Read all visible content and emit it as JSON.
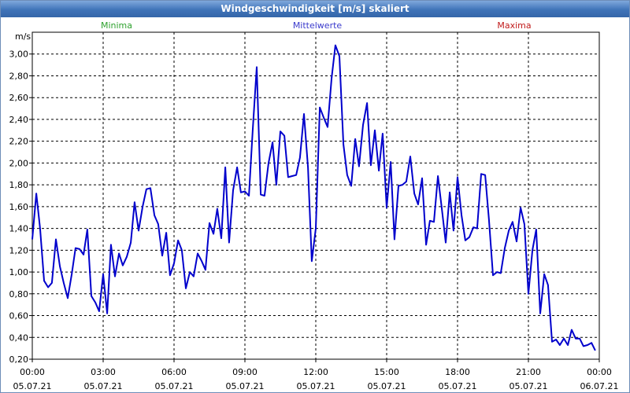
{
  "window": {
    "title": "Windgeschwindigkeit [m/s] skaliert"
  },
  "legend": {
    "minima": {
      "label": "Minima",
      "color": "#2ea12e"
    },
    "mittelwerte": {
      "label": "Mittelwerte",
      "color": "#3a3acc"
    },
    "maxima": {
      "label": "Maxima",
      "color": "#c01a1a"
    }
  },
  "chart_data": {
    "type": "line",
    "ylabel": "m/s",
    "ylim": [
      0.2,
      3.2
    ],
    "yticks": [
      "0,20",
      "0,40",
      "0,60",
      "0,80",
      "1,00",
      "1,20",
      "1,40",
      "1,60",
      "1,80",
      "2,00",
      "2,20",
      "2,40",
      "2,60",
      "2,80",
      "3,00"
    ],
    "xlim": [
      0,
      24
    ],
    "xticks": [
      {
        "time": "00:00",
        "date": "05.07.21"
      },
      {
        "time": "03:00",
        "date": "05.07.21"
      },
      {
        "time": "06:00",
        "date": "05.07.21"
      },
      {
        "time": "09:00",
        "date": "05.07.21"
      },
      {
        "time": "12:00",
        "date": "05.07.21"
      },
      {
        "time": "15:00",
        "date": "05.07.21"
      },
      {
        "time": "18:00",
        "date": "05.07.21"
      },
      {
        "time": "21:00",
        "date": "05.07.21"
      },
      {
        "time": "00:00",
        "date": "06.07.21"
      }
    ],
    "grid": true,
    "series": [
      {
        "name": "Mittelwerte",
        "color": "#0000cc",
        "x": [
          0.0,
          0.17,
          0.33,
          0.5,
          0.67,
          0.83,
          1.0,
          1.17,
          1.33,
          1.5,
          1.67,
          1.83,
          2.0,
          2.17,
          2.33,
          2.5,
          2.67,
          2.83,
          3.0,
          3.17,
          3.33,
          3.5,
          3.67,
          3.83,
          4.0,
          4.17,
          4.33,
          4.5,
          4.67,
          4.83,
          5.0,
          5.17,
          5.33,
          5.5,
          5.67,
          5.83,
          6.0,
          6.17,
          6.33,
          6.5,
          6.67,
          6.83,
          7.0,
          7.17,
          7.33,
          7.5,
          7.67,
          7.83,
          8.0,
          8.17,
          8.33,
          8.5,
          8.67,
          8.83,
          9.0,
          9.17,
          9.33,
          9.5,
          9.67,
          9.83,
          10.0,
          10.17,
          10.33,
          10.5,
          10.67,
          10.83,
          11.0,
          11.17,
          11.33,
          11.5,
          11.67,
          11.83,
          12.0,
          12.17,
          12.33,
          12.5,
          12.67,
          12.83,
          13.0,
          13.17,
          13.33,
          13.5,
          13.67,
          13.83,
          14.0,
          14.17,
          14.33,
          14.5,
          14.67,
          14.83,
          15.0,
          15.17,
          15.33,
          15.5,
          15.67,
          15.83,
          16.0,
          16.17,
          16.33,
          16.5,
          16.67,
          16.83,
          17.0,
          17.17,
          17.33,
          17.5,
          17.67,
          17.83,
          18.0,
          18.17,
          18.33,
          18.5,
          18.67,
          18.83,
          19.0,
          19.17,
          19.33,
          19.5,
          19.67,
          19.83,
          20.0,
          20.17,
          20.33,
          20.5,
          20.67,
          20.83,
          21.0,
          21.17,
          21.33,
          21.5,
          21.67,
          21.83,
          22.0,
          22.17,
          22.33,
          22.5,
          22.67,
          22.83,
          23.0,
          23.17,
          23.33,
          23.5,
          23.67,
          23.83
        ],
        "values": [
          1.3,
          1.72,
          1.4,
          0.92,
          0.86,
          0.9,
          1.3,
          1.05,
          0.9,
          0.76,
          0.98,
          1.22,
          1.21,
          1.16,
          1.39,
          0.78,
          0.72,
          0.64,
          0.98,
          0.62,
          1.25,
          0.96,
          1.17,
          1.06,
          1.14,
          1.27,
          1.64,
          1.38,
          1.6,
          1.76,
          1.77,
          1.52,
          1.44,
          1.15,
          1.36,
          0.97,
          1.08,
          1.29,
          1.2,
          0.85,
          1.0,
          0.96,
          1.17,
          1.1,
          1.02,
          1.45,
          1.35,
          1.58,
          1.31,
          1.96,
          1.27,
          1.75,
          1.96,
          1.73,
          1.74,
          1.7,
          2.3,
          2.88,
          1.71,
          1.7,
          2.0,
          2.19,
          1.8,
          2.29,
          2.25,
          1.87,
          1.88,
          1.89,
          2.05,
          2.45,
          1.96,
          1.1,
          1.4,
          2.51,
          2.42,
          2.33,
          2.78,
          3.08,
          2.98,
          2.17,
          1.89,
          1.79,
          2.22,
          1.97,
          2.35,
          2.55,
          1.98,
          2.3,
          1.93,
          2.27,
          1.59,
          2.01,
          1.3,
          1.79,
          1.8,
          1.83,
          2.06,
          1.72,
          1.62,
          1.86,
          1.25,
          1.47,
          1.46,
          1.88,
          1.59,
          1.27,
          1.73,
          1.38,
          1.87,
          1.52,
          1.29,
          1.32,
          1.41,
          1.4,
          1.9,
          1.89,
          1.48,
          0.97,
          1.0,
          0.99,
          1.22,
          1.38,
          1.46,
          1.28,
          1.59,
          1.44,
          0.8,
          1.2,
          1.39,
          0.62,
          0.98,
          0.88,
          0.36,
          0.38,
          0.33,
          0.39,
          0.33,
          0.47,
          0.39,
          0.39,
          0.32,
          0.33,
          0.35,
          0.28
        ]
      }
    ]
  }
}
